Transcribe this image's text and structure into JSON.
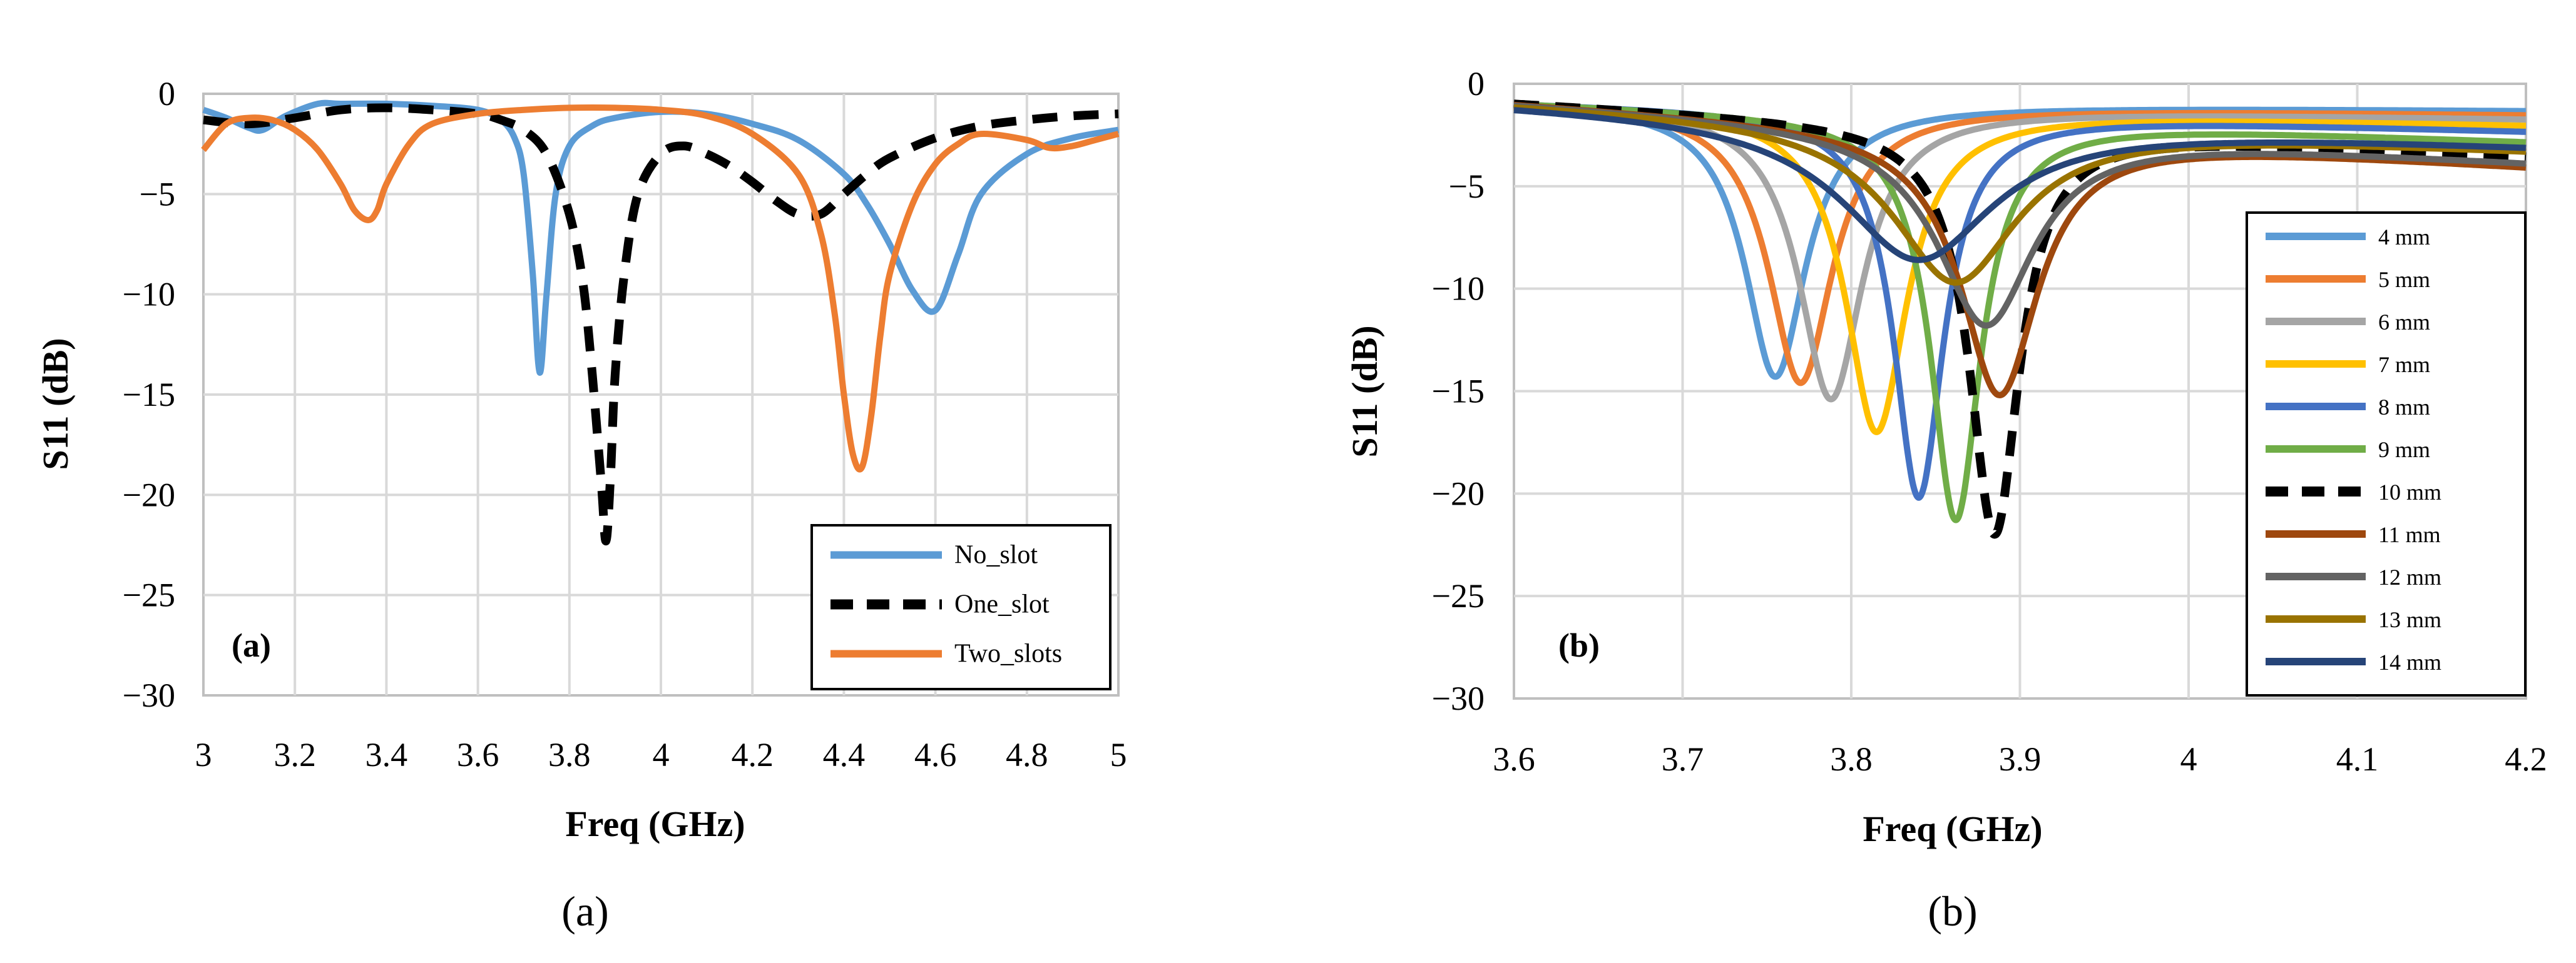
{
  "chart_data": [
    {
      "type": "line",
      "panel_label": "(a)",
      "caption": "(a)",
      "xlabel": "Freq (GHz)",
      "ylabel": "S11 (dB)",
      "xlim": [
        3,
        5
      ],
      "ylim": [
        -30,
        0
      ],
      "xticks": [
        "3",
        "3.2",
        "3.4",
        "3.6",
        "3.8",
        "4",
        "4.2",
        "4.4",
        "4.6",
        "4.8",
        "5"
      ],
      "yticks": [
        "0",
        "-5",
        "-10",
        "-15",
        "-20",
        "-25",
        "-30"
      ],
      "grid": true,
      "legend_position": "bottom-right",
      "series": [
        {
          "name": "No_slot",
          "color": "#5B9BD5",
          "dash": false,
          "x": [
            3.0,
            3.05,
            3.1,
            3.13,
            3.18,
            3.25,
            3.3,
            3.4,
            3.5,
            3.6,
            3.65,
            3.68,
            3.7,
            3.72,
            3.735,
            3.75,
            3.77,
            3.8,
            3.85,
            3.9,
            4.0,
            4.1,
            4.2,
            4.3,
            4.4,
            4.45,
            4.5,
            4.55,
            4.6,
            4.65,
            4.7,
            4.8,
            4.9,
            5.0
          ],
          "y": [
            -0.8,
            -1.2,
            -1.7,
            -1.8,
            -1.1,
            -0.5,
            -0.5,
            -0.5,
            -0.6,
            -0.8,
            -1.3,
            -2.2,
            -4.0,
            -9.0,
            -13.9,
            -10.0,
            -5.0,
            -2.6,
            -1.6,
            -1.2,
            -0.9,
            -1.0,
            -1.5,
            -2.3,
            -4.0,
            -5.5,
            -7.5,
            -9.8,
            -10.8,
            -8.0,
            -5.0,
            -3.0,
            -2.2,
            -1.8
          ]
        },
        {
          "name": "One_slot",
          "color": "#000000",
          "dash": true,
          "x": [
            3.0,
            3.1,
            3.2,
            3.3,
            3.4,
            3.5,
            3.6,
            3.65,
            3.7,
            3.75,
            3.8,
            3.83,
            3.85,
            3.87,
            3.88,
            3.89,
            3.9,
            3.92,
            3.95,
            4.0,
            4.05,
            4.1,
            4.15,
            4.2,
            4.25,
            4.3,
            4.35,
            4.4,
            4.45,
            4.5,
            4.6,
            4.7,
            4.8,
            4.9,
            5.0
          ],
          "y": [
            -1.3,
            -1.5,
            -1.2,
            -0.8,
            -0.7,
            -0.8,
            -1.0,
            -1.3,
            -1.8,
            -3.0,
            -6.0,
            -9.5,
            -14.0,
            -19.5,
            -22.3,
            -19.0,
            -14.0,
            -9.0,
            -5.0,
            -3.0,
            -2.6,
            -3.0,
            -3.6,
            -4.4,
            -5.3,
            -6.0,
            -6.0,
            -5.0,
            -4.0,
            -3.2,
            -2.2,
            -1.6,
            -1.3,
            -1.1,
            -1.0
          ]
        },
        {
          "name": "Two_slots",
          "color": "#ED7D31",
          "dash": false,
          "x": [
            3.0,
            3.05,
            3.1,
            3.15,
            3.2,
            3.25,
            3.3,
            3.33,
            3.36,
            3.38,
            3.4,
            3.45,
            3.5,
            3.6,
            3.7,
            3.8,
            3.9,
            4.0,
            4.1,
            4.2,
            4.3,
            4.35,
            4.38,
            4.4,
            4.42,
            4.44,
            4.46,
            4.48,
            4.5,
            4.55,
            4.6,
            4.65,
            4.7,
            4.8,
            4.85,
            4.9,
            4.95,
            5.0
          ],
          "y": [
            -2.8,
            -1.5,
            -1.2,
            -1.3,
            -1.8,
            -2.8,
            -4.5,
            -5.8,
            -6.3,
            -5.8,
            -4.5,
            -2.5,
            -1.5,
            -1.0,
            -0.8,
            -0.7,
            -0.7,
            -0.8,
            -1.1,
            -2.0,
            -4.0,
            -7.0,
            -11.0,
            -15.0,
            -18.0,
            -18.6,
            -16.0,
            -12.0,
            -9.0,
            -5.5,
            -3.5,
            -2.5,
            -2.0,
            -2.3,
            -2.7,
            -2.6,
            -2.3,
            -2.0
          ]
        }
      ]
    },
    {
      "type": "line",
      "panel_label": "(b)",
      "caption": "(b)",
      "xlabel": "Freq (GHz)",
      "ylabel": "S11 (dB)",
      "xlim": [
        3.6,
        4.2
      ],
      "ylim": [
        -30,
        0
      ],
      "xticks": [
        "3.6",
        "3.7",
        "3.8",
        "3.9",
        "4",
        "4.1",
        "4.2"
      ],
      "yticks": [
        "0",
        "-5",
        "-10",
        "-15",
        "-20",
        "-25",
        "-30"
      ],
      "grid": true,
      "legend_position": "right",
      "series": [
        {
          "name": "4 mm",
          "color": "#5B9BD5",
          "dash": false,
          "f0": 3.755,
          "depth": -14.3,
          "width": 0.022,
          "end": -1.3
        },
        {
          "name": "5 mm",
          "color": "#ED7D31",
          "dash": false,
          "f0": 3.77,
          "depth": -14.6,
          "width": 0.023,
          "end": -1.5
        },
        {
          "name": "6 mm",
          "color": "#A5A5A5",
          "dash": false,
          "f0": 3.788,
          "depth": -15.4,
          "width": 0.023,
          "end": -1.7
        },
        {
          "name": "7 mm",
          "color": "#FFC000",
          "dash": false,
          "f0": 3.815,
          "depth": -17.0,
          "width": 0.022,
          "end": -2.0
        },
        {
          "name": "8 mm",
          "color": "#4472C4",
          "dash": false,
          "f0": 3.84,
          "depth": -20.2,
          "width": 0.018,
          "end": -2.3
        },
        {
          "name": "9 mm",
          "color": "#70AD47",
          "dash": false,
          "f0": 3.862,
          "depth": -21.3,
          "width": 0.018,
          "end": -2.8
        },
        {
          "name": "10 mm",
          "color": "#000000",
          "dash": true,
          "f0": 3.885,
          "depth": -22.0,
          "width": 0.018,
          "end": -3.5
        },
        {
          "name": "11 mm",
          "color": "#9E480E",
          "dash": false,
          "f0": 3.888,
          "depth": -15.2,
          "width": 0.028,
          "end": -4.0
        },
        {
          "name": "12 mm",
          "color": "#636363",
          "dash": false,
          "f0": 3.88,
          "depth": -11.8,
          "width": 0.035,
          "end": -3.8
        },
        {
          "name": "13 mm",
          "color": "#997300",
          "dash": false,
          "f0": 3.862,
          "depth": -9.7,
          "width": 0.045,
          "end": -3.2
        },
        {
          "name": "14 mm",
          "color": "#264478",
          "dash": false,
          "f0": 3.84,
          "depth": -8.6,
          "width": 0.055,
          "end": -3.0
        }
      ]
    }
  ]
}
